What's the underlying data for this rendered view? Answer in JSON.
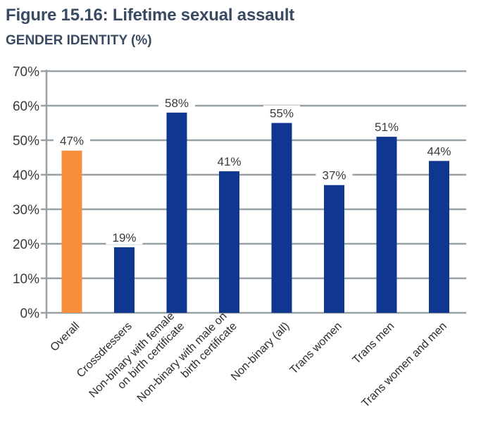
{
  "title": "Figure 15.16: Lifetime sexual assault",
  "subtitle": "GENDER IDENTITY (%)",
  "chart_data": {
    "type": "bar",
    "categories": [
      "Overall",
      "Crossdressers",
      [
        "Non-binary with female",
        "on birth certificate"
      ],
      [
        "Non-binary with male on",
        "birth certificate"
      ],
      "Non-binary (all)",
      "Trans women",
      "Trans men",
      "Trans women and men"
    ],
    "values": [
      47,
      19,
      58,
      41,
      55,
      37,
      51,
      44
    ],
    "data_labels": [
      "47%",
      "19%",
      "58%",
      "41%",
      "55%",
      "37%",
      "51%",
      "44%"
    ],
    "ylim": [
      0,
      70
    ],
    "yticks": [
      0,
      10,
      20,
      30,
      40,
      50,
      60,
      70
    ],
    "ytick_labels": [
      "0%",
      "10%",
      "20%",
      "30%",
      "40%",
      "50%",
      "60%",
      "70%"
    ],
    "grid": true,
    "colors": {
      "highlight": "#f98f3c",
      "bar": "#0f3790",
      "grid": "#97a1a5",
      "axis": "#97a1a5"
    },
    "highlight_index": 0
  }
}
